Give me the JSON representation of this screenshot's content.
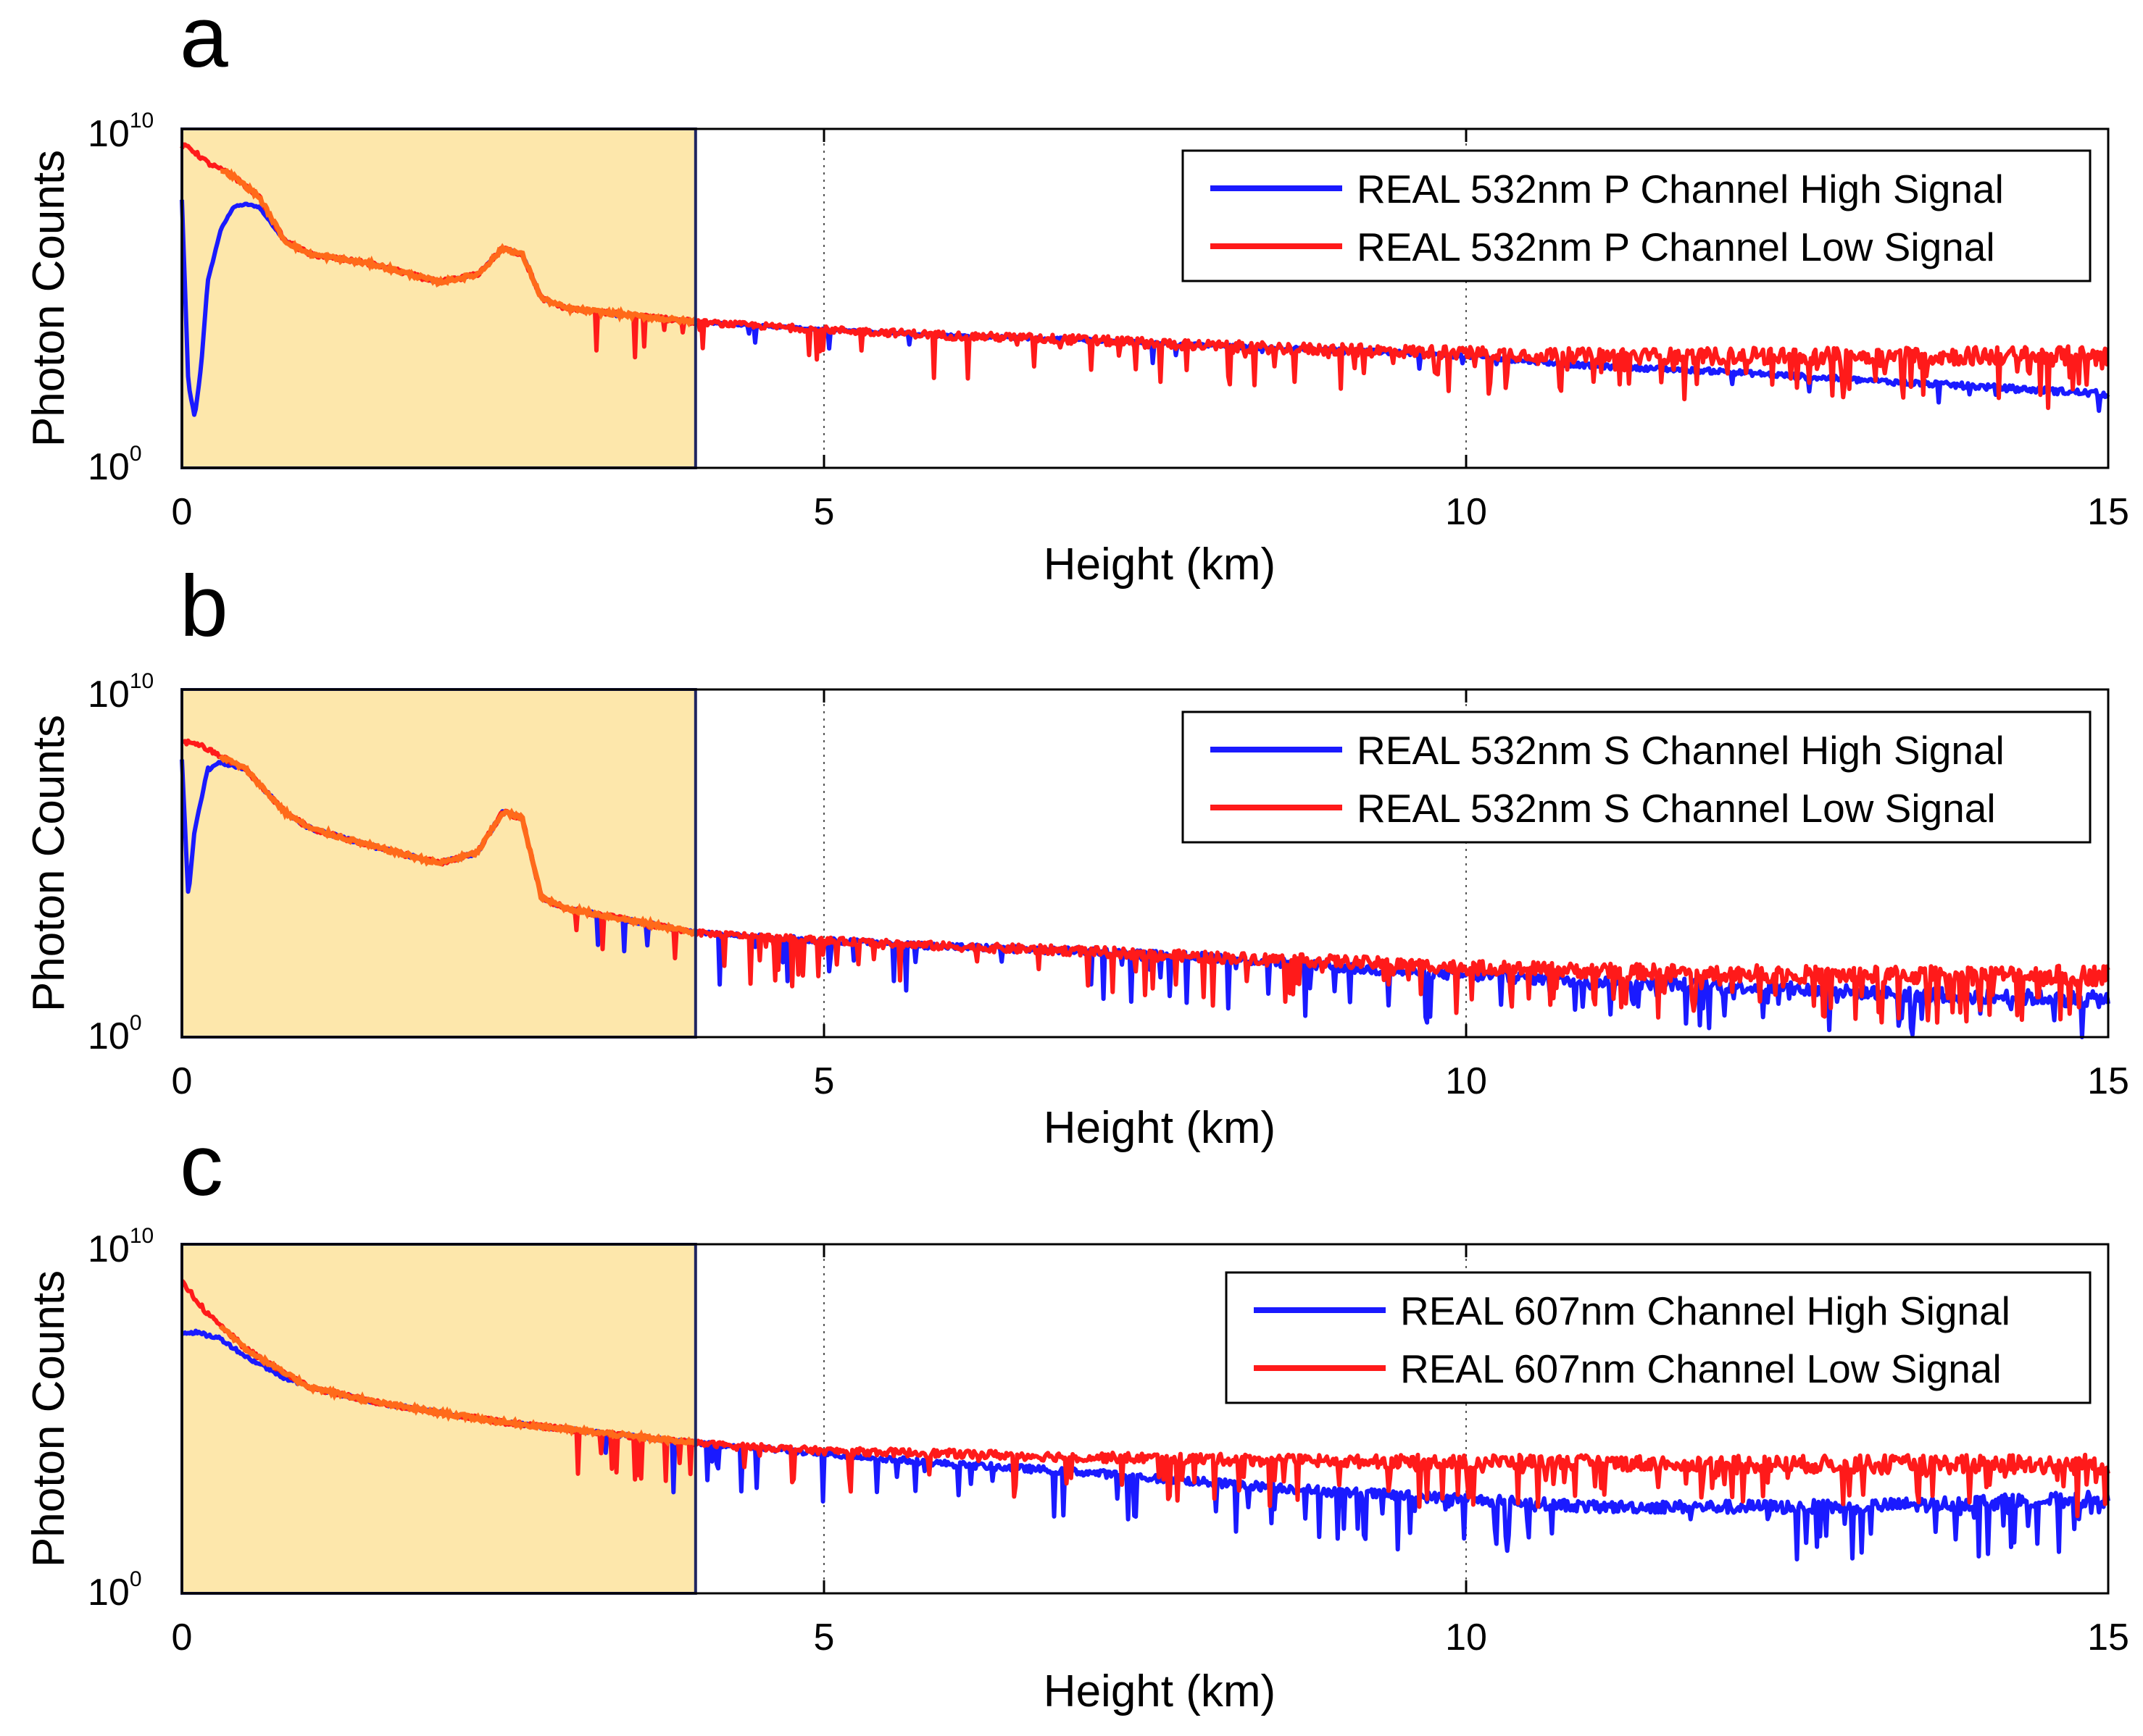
{
  "figure": {
    "colors": {
      "high_signal": "#1a1aff",
      "low_signal": "#ff1a1a",
      "overlap": "#ff6a1a",
      "highlight_fill": "#fde7ab",
      "highlight_border": "#1f2560",
      "axes": "#000000"
    }
  },
  "chart_data": [
    {
      "type": "line",
      "panel": "a",
      "xlabel": "Height (km)",
      "ylabel": "Photon Counts",
      "yscale": "log",
      "xlim": [
        0,
        15
      ],
      "ylim": [
        1,
        10000000000
      ],
      "xticks": [
        "0",
        "5",
        "10",
        "15"
      ],
      "ytick_base": "10",
      "ytick_low_exp": "0",
      "ytick_high_exp": "10",
      "grid": true,
      "highlight_region_km": [
        0,
        4
      ],
      "legend_position": "top-right",
      "series": [
        {
          "name": "REAL 532nm P Channel High Signal",
          "x": [
            0,
            0.05,
            0.1,
            0.15,
            0.2,
            0.3,
            0.4,
            0.5,
            0.6,
            0.8,
            1,
            1.5,
            2,
            2.3,
            2.5,
            2.65,
            2.8,
            3,
            4,
            5,
            6,
            7,
            8,
            9,
            10,
            11,
            12,
            13,
            14,
            15
          ],
          "y": [
            80000000,
            300,
            30,
            1000,
            300000,
            10000000,
            50000000,
            60000000,
            50000000,
            5000000,
            2000000,
            1000000,
            300000,
            500000,
            3000000,
            2000000,
            100000,
            50000,
            20000,
            12000,
            8000,
            6000,
            4000,
            3000,
            2000,
            1000,
            700,
            400,
            250,
            150
          ]
        },
        {
          "name": "REAL 532nm P Channel Low Signal",
          "x": [
            0,
            0.05,
            0.2,
            0.4,
            0.6,
            0.8,
            1,
            1.5,
            2,
            2.3,
            2.5,
            2.65,
            2.8,
            3,
            4,
            5,
            6,
            7,
            8,
            9,
            10,
            11,
            12,
            13,
            14,
            15
          ],
          "y": [
            3000000000,
            3000000000,
            1000000000,
            400000000,
            100000000,
            5000000,
            2000000,
            1000000,
            300000,
            500000,
            3000000,
            2000000,
            100000,
            50000,
            20000,
            12000,
            8000,
            6000,
            4000,
            3000,
            2500,
            2000,
            2000,
            2000,
            2000,
            2000
          ]
        }
      ]
    },
    {
      "type": "line",
      "panel": "b",
      "xlabel": "Height (km)",
      "ylabel": "Photon Counts",
      "yscale": "log",
      "xlim": [
        0,
        15
      ],
      "ylim": [
        1,
        10000000000
      ],
      "xticks": [
        "0",
        "5",
        "10",
        "15"
      ],
      "ytick_base": "10",
      "ytick_low_exp": "0",
      "ytick_high_exp": "10",
      "grid": true,
      "highlight_region_km": [
        0,
        4
      ],
      "legend_position": "top-right",
      "series": [
        {
          "name": "REAL 532nm S Channel High Signal",
          "x": [
            0,
            0.05,
            0.1,
            0.2,
            0.3,
            0.5,
            0.8,
            1,
            1.5,
            2,
            2.3,
            2.5,
            2.65,
            2.8,
            3,
            4,
            5,
            6,
            7,
            8,
            9,
            10,
            11,
            12,
            13,
            14,
            15
          ],
          "y": [
            100000000,
            10000,
            1000000,
            50000000,
            80000000,
            50000000,
            3000000,
            1000000,
            300000,
            100000,
            200000,
            3000000,
            2000000,
            10000,
            5000,
            1000,
            600,
            400,
            300,
            200,
            100,
            60,
            40,
            30,
            20,
            15,
            12
          ]
        },
        {
          "name": "REAL 532nm S Channel Low Signal",
          "x": [
            0,
            0.1,
            0.3,
            0.5,
            0.8,
            1,
            1.5,
            2,
            2.3,
            2.5,
            2.65,
            2.8,
            3,
            4,
            5,
            6,
            7,
            8,
            9,
            10,
            11,
            12,
            13,
            14,
            15
          ],
          "y": [
            300000000,
            300000000,
            120000000,
            50000000,
            3000000,
            1000000,
            300000,
            100000,
            200000,
            3000000,
            2000000,
            10000,
            5000,
            1000,
            600,
            400,
            300,
            200,
            150,
            100,
            80,
            70,
            60,
            60,
            60
          ]
        }
      ]
    },
    {
      "type": "line",
      "panel": "c",
      "xlabel": "Height (km)",
      "ylabel": "Photon Counts",
      "yscale": "log",
      "xlim": [
        0,
        15
      ],
      "ylim": [
        1,
        10000000000
      ],
      "xticks": [
        "0",
        "5",
        "10",
        "15"
      ],
      "ytick_base": "10",
      "ytick_low_exp": "0",
      "ytick_high_exp": "10",
      "grid": true,
      "highlight_region_km": [
        0,
        4
      ],
      "legend_position": "top-right",
      "series": [
        {
          "name": "REAL 607nm Channel High Signal",
          "x": [
            0,
            0.1,
            0.3,
            0.5,
            0.8,
            1,
            1.5,
            2,
            2.5,
            3,
            4,
            5,
            6,
            7,
            8,
            9,
            10,
            11,
            12,
            13,
            14,
            15
          ],
          "y": [
            30000000,
            30000000,
            20000000,
            6000000,
            1500000,
            800000,
            300000,
            150000,
            80000,
            50000,
            20000,
            10000,
            5000,
            3000,
            1500,
            800,
            500,
            300,
            300,
            300,
            400,
            500
          ]
        },
        {
          "name": "REAL 607nm Channel Low Signal",
          "x": [
            0,
            0.05,
            0.2,
            0.5,
            0.8,
            1,
            1.5,
            2,
            2.5,
            3,
            4,
            5,
            6,
            7,
            8,
            9,
            10,
            11,
            12,
            13,
            14,
            15
          ],
          "y": [
            800000000,
            500000000,
            100000000,
            10000000,
            2000000,
            800000,
            300000,
            150000,
            80000,
            50000,
            20000,
            12000,
            10000,
            8000,
            7000,
            6000,
            6000,
            5500,
            5000,
            5000,
            5000,
            5000
          ]
        }
      ]
    }
  ]
}
